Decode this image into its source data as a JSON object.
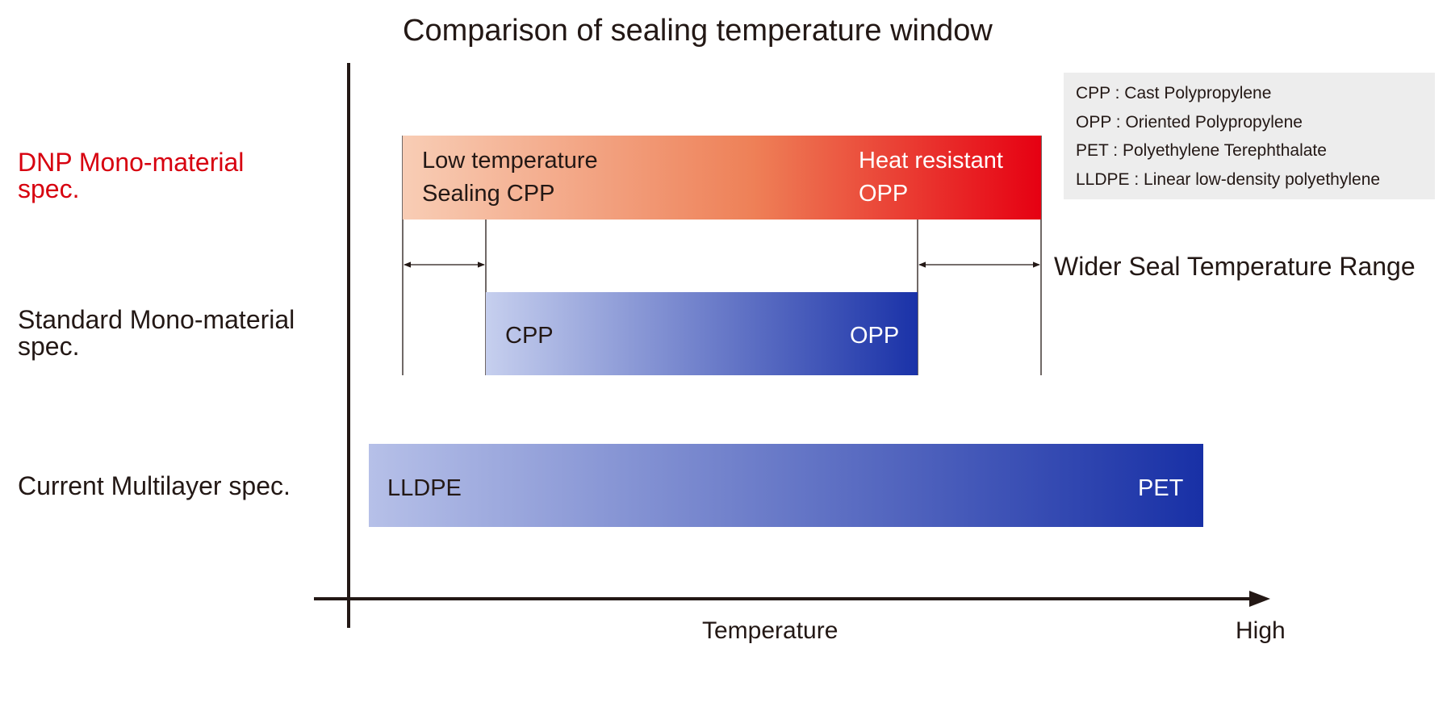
{
  "title": "Comparison of sealing temperature window",
  "rows": [
    {
      "label_line1": "DNP Mono-material",
      "label_line2": "spec.",
      "label_color": "#d7000f"
    },
    {
      "label_line1": "Standard Mono-material",
      "label_line2": "spec.",
      "label_color": "#231815"
    },
    {
      "label_line1": "Current Multilayer spec.",
      "label_line2": "",
      "label_color": "#231815"
    }
  ],
  "bars": {
    "dnp": {
      "low_line1": "Low temperature",
      "low_line2": "Sealing CPP",
      "high_line1": "Heat resistant",
      "high_line2": "OPP",
      "start_color": "#f8cdb5",
      "end_color": "#e60012"
    },
    "standard": {
      "low": "CPP",
      "high": "OPP",
      "start_color": "#c6cfee",
      "end_color": "#1a32a8"
    },
    "current": {
      "low": "LLDPE",
      "high": "PET",
      "start_color": "#b6c0e8",
      "end_color": "#1830a6"
    }
  },
  "annotation": "Wider Seal Temperature Range",
  "legend": [
    "CPP : Cast Polypropylene",
    "OPP : Oriented Polypropylene",
    "PET : Polyethylene Terephthalate",
    "LLDPE : Linear low-density polyethylene"
  ],
  "x_axis": {
    "label": "Temperature",
    "end_label": "High"
  }
}
